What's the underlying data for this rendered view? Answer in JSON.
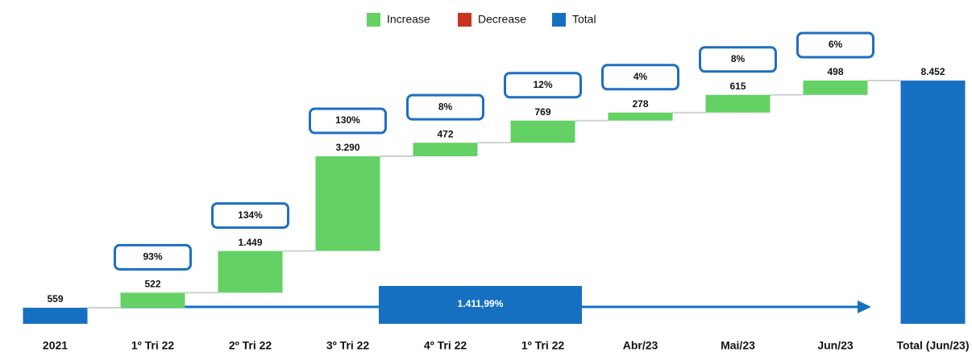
{
  "chart_data": {
    "type": "waterfall",
    "legend": [
      {
        "name": "Increase",
        "color": "#63d163"
      },
      {
        "name": "Decrease",
        "color": "#c9331f"
      },
      {
        "name": "Total",
        "color": "#1670c2"
      }
    ],
    "categories": [
      "2021",
      "1º Tri 22",
      "2º Tri 22",
      "3º Tri 22",
      "4º Tri 22",
      "1º Tri 22",
      "Abr/23",
      "Mai/23",
      "Jun/23",
      "Total (Jun/23)"
    ],
    "measure": [
      "Total",
      "Increase",
      "Increase",
      "Increase",
      "Increase",
      "Increase",
      "Increase",
      "Increase",
      "Increase",
      "Total"
    ],
    "values": [
      559,
      522,
      1449,
      3290,
      472,
      769,
      278,
      615,
      498,
      8452
    ],
    "value_labels": [
      "559",
      "522",
      "1.449",
      "3.290",
      "472",
      "769",
      "278",
      "615",
      "498",
      "8.452"
    ],
    "annotations": [
      null,
      "93%",
      "134%",
      "130%",
      "8%",
      "12%",
      "4%",
      "8%",
      "6%",
      null
    ],
    "arrow_label": "1.411,99%"
  }
}
